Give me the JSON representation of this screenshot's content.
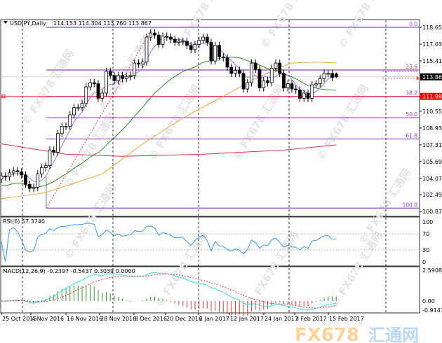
{
  "header": {
    "symbol": "USDJPY,Daily",
    "ohlc": "114.153 114.304 113.760 113.867"
  },
  "rsi": {
    "label": "RSI(6) 57.3740",
    "levels": [
      100,
      70,
      30,
      0
    ],
    "color": "#3399ff"
  },
  "macd": {
    "label": "MACD(12,26,9) -0.2397 -0.5437 0.3039 0.0000",
    "axis": [
      "2.5908",
      "0.00",
      "-0.9141"
    ],
    "line_color": "#33e0f0",
    "signal_color": "#ff3333"
  },
  "price_axis": [
    "118.650",
    "117.030",
    "115.410",
    "111.980",
    "110.550",
    "108.930",
    "107.310",
    "105.690",
    "104.070",
    "102.495",
    "100.875"
  ],
  "current_price": "113.867",
  "line_price": "111.980",
  "fib_levels": [
    {
      "label": "0.0",
      "price": 118.65
    },
    {
      "label": "23.6",
      "price": 114.53
    },
    {
      "label": "38.2",
      "price": 111.98
    },
    {
      "label": "50.0",
      "price": 109.93
    },
    {
      "label": "61.8",
      "price": 107.87
    },
    {
      "label": "100.0",
      "price": 101.2
    }
  ],
  "dates": [
    "25 Oct 2016",
    "4 Nov 2016",
    "16 Nov 2016",
    "28 Nov 2016",
    "8 Dec 2016",
    "20 Dec 2016",
    "2 Jan 2017",
    "12 Jan 2017",
    "24 Jan 2017",
    "3 Feb 2017",
    "15 Feb 2017"
  ],
  "watermark": "© FX678 汇通网",
  "logo": {
    "fx": "FX678",
    "cn": "汇通网"
  },
  "chart_data": {
    "type": "candlestick",
    "symbol": "USDJPY",
    "timeframe": "Daily",
    "ylim": [
      100.875,
      118.65
    ],
    "last_bar": {
      "open": 114.153,
      "high": 114.304,
      "low": 113.76,
      "close": 113.867
    },
    "close": [
      104.3,
      104.2,
      104.6,
      104.8,
      104.7,
      104.4,
      103.5,
      103.1,
      103.2,
      104.5,
      105.1,
      105.3,
      106.8,
      106.6,
      108.4,
      109.1,
      109.1,
      110.2,
      110.9,
      110.9,
      111.3,
      112.9,
      113.3,
      113.2,
      111.8,
      112.3,
      114.4,
      114.0,
      113.5,
      114.0,
      113.7,
      113.9,
      114.0,
      115.2,
      115.1,
      115.3,
      117.7,
      118.1,
      117.9,
      117.0,
      117.8,
      117.7,
      117.5,
      117.2,
      117.3,
      117.3,
      116.9,
      116.5,
      117.0,
      117.4,
      117.7,
      117.2,
      115.4,
      116.9,
      115.8,
      115.7,
      114.8,
      114.2,
      114.5,
      114.2,
      112.7,
      113.3,
      115.2,
      114.6,
      112.8,
      113.5,
      113.3,
      114.7,
      115.2,
      114.2,
      112.8,
      113.2,
      112.7,
      112.6,
      111.8,
      112.3,
      111.8,
      113.1,
      113.2,
      113.7,
      114.2,
      114.2,
      113.8,
      113.867
    ],
    "ma_orange": [
      [
        0,
        102.1
      ],
      [
        11,
        102.7
      ],
      [
        25,
        104.5
      ],
      [
        35,
        107.4
      ],
      [
        45,
        109.9
      ],
      [
        55,
        112.0
      ],
      [
        62,
        113.5
      ],
      [
        68,
        114.6
      ],
      [
        72,
        115.2
      ],
      [
        78,
        115.3
      ],
      [
        83,
        115.2
      ]
    ],
    "ma_red": [
      [
        0,
        107.4
      ],
      [
        16,
        106.4
      ],
      [
        30,
        106.2
      ],
      [
        50,
        106.4
      ],
      [
        70,
        106.8
      ],
      [
        83,
        107.3
      ]
    ],
    "colors": {
      "bull": "#ffffff",
      "bear": "#000000",
      "ma_fast": "#a070f0",
      "ma_mid": "#2e8b2e",
      "ma_orange": "#ffa030",
      "ma_red": "#e03050",
      "fib": "#a040d0"
    }
  }
}
